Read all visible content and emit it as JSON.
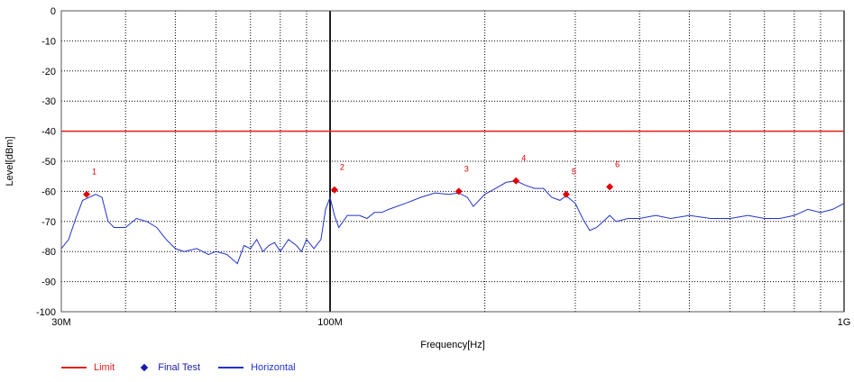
{
  "chart_data": {
    "type": "line",
    "xlabel": "Frequency[Hz]",
    "ylabel": "Level[dBm]",
    "xscale": "log",
    "xlim": [
      30000000,
      1000000000
    ],
    "ylim": [
      -100,
      0
    ],
    "x_ticks": [
      {
        "value": 30000000,
        "label": "30M"
      },
      {
        "value": 100000000,
        "label": "100M"
      },
      {
        "value": 1000000000,
        "label": "1G"
      }
    ],
    "y_ticks": [
      0,
      -10,
      -20,
      -30,
      -40,
      -50,
      -60,
      -70,
      -80,
      -90,
      -100
    ],
    "grid": true,
    "legend_position": "bottom-left",
    "limit": {
      "name": "Limit",
      "value": -40,
      "color": "#e02020"
    },
    "final_test": {
      "name": "Final Test",
      "color": "#e00000",
      "legend_color": "#1a1aa8",
      "points": [
        {
          "label": "1",
          "x": 33600000,
          "y": -61
        },
        {
          "label": "2",
          "x": 102000000,
          "y": -59.5
        },
        {
          "label": "3",
          "x": 178000000,
          "y": -60
        },
        {
          "label": "4",
          "x": 230000000,
          "y": -56.5
        },
        {
          "label": "5",
          "x": 288000000,
          "y": -61
        },
        {
          "label": "6",
          "x": 350000000,
          "y": -58.5
        }
      ]
    },
    "series": [
      {
        "name": "Horizontal",
        "color": "#2233cc",
        "x": [
          30000000,
          31000000,
          32000000,
          33000000,
          34000000,
          35000000,
          36000000,
          37000000,
          38000000,
          40000000,
          42000000,
          44000000,
          46000000,
          48000000,
          50000000,
          52000000,
          55000000,
          58000000,
          60000000,
          63000000,
          66000000,
          68000000,
          70000000,
          72000000,
          74000000,
          76000000,
          78000000,
          80000000,
          83000000,
          86000000,
          88000000,
          90000000,
          93000000,
          96000000,
          98000000,
          100000000,
          102000000,
          104000000,
          106000000,
          108000000,
          110000000,
          114000000,
          118000000,
          122000000,
          126000000,
          130000000,
          140000000,
          150000000,
          160000000,
          170000000,
          178000000,
          185000000,
          190000000,
          200000000,
          210000000,
          220000000,
          230000000,
          240000000,
          250000000,
          260000000,
          270000000,
          280000000,
          288000000,
          300000000,
          310000000,
          320000000,
          330000000,
          340000000,
          350000000,
          360000000,
          380000000,
          400000000,
          430000000,
          460000000,
          500000000,
          550000000,
          600000000,
          650000000,
          700000000,
          750000000,
          800000000,
          850000000,
          900000000,
          950000000,
          1000000000
        ],
        "y": [
          -79,
          -76,
          -69,
          -63,
          -62,
          -61,
          -62,
          -70,
          -72,
          -72,
          -69,
          -70,
          -72,
          -76,
          -79,
          -80,
          -79,
          -81,
          -80,
          -81,
          -84,
          -78,
          -79,
          -76,
          -80,
          -78,
          -77,
          -80,
          -76,
          -78,
          -80,
          -76,
          -79,
          -76,
          -66,
          -62,
          -68,
          -72,
          -70,
          -68,
          -68,
          -68,
          -69,
          -67,
          -67,
          -66,
          -64,
          -62,
          -60.5,
          -61,
          -60.5,
          -62,
          -65,
          -61,
          -59,
          -57,
          -56.5,
          -58,
          -59,
          -59,
          -62,
          -63,
          -61.5,
          -64,
          -69,
          -73,
          -72,
          -70,
          -68,
          -70,
          -69,
          -69,
          -68,
          -69,
          -68,
          -69,
          -69,
          -68,
          -69,
          -69,
          -68,
          -66,
          -67,
          -66,
          -64
        ]
      }
    ]
  }
}
